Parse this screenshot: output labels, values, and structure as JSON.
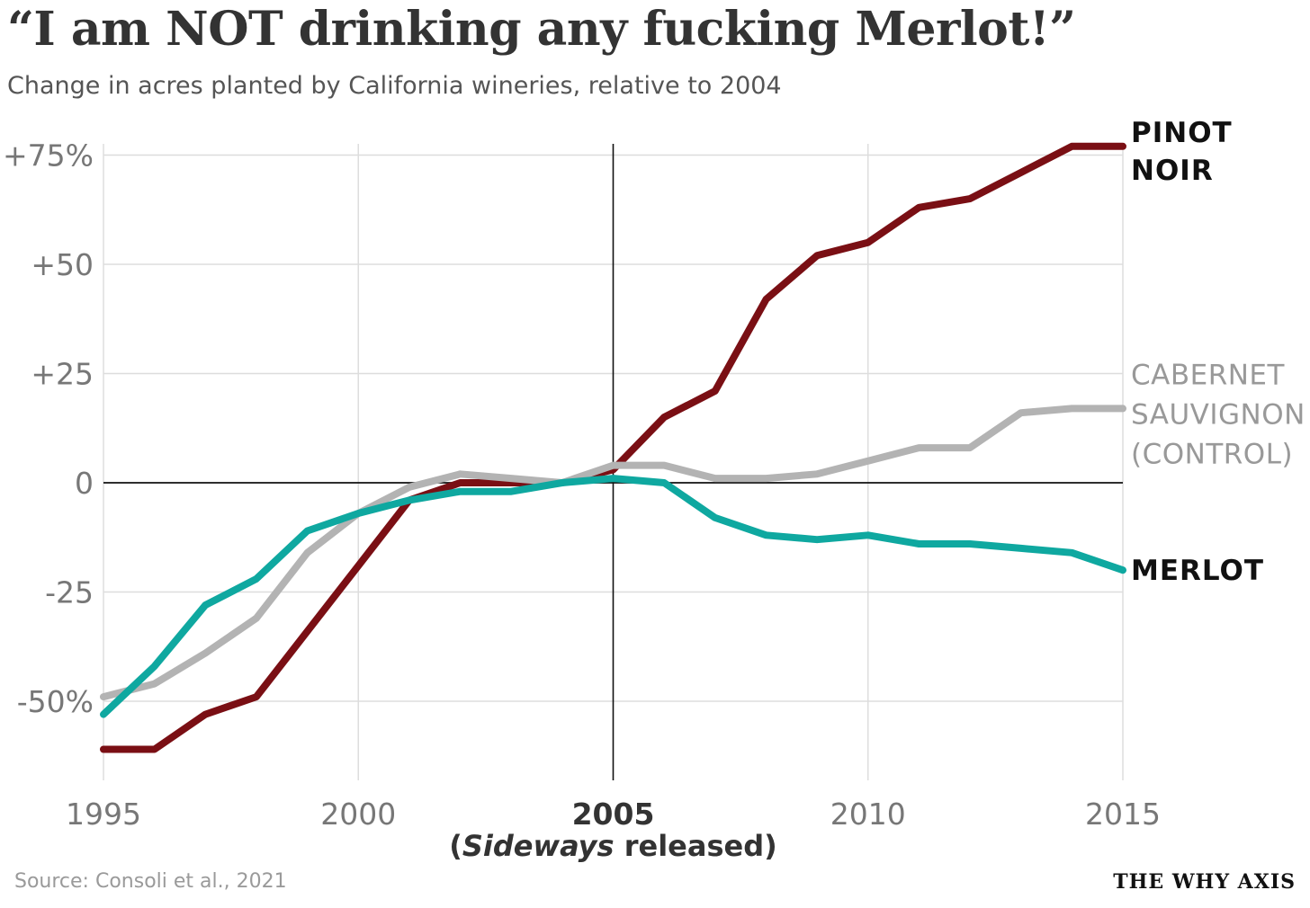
{
  "header": {
    "title": "“I am NOT drinking any fucking Merlot!”",
    "subtitle": "Change in acres planted by California wineries, relative to 2004"
  },
  "footer": {
    "source": "Source: Consoli et al., 2021",
    "brand": "THE WHY AXIS"
  },
  "chart_data": {
    "type": "line",
    "title": "“I am NOT drinking any fucking Merlot!”",
    "subtitle": "Change in acres planted by California wineries, relative to 2004",
    "xlabel": "",
    "ylabel": "",
    "xlim": [
      1995,
      2015
    ],
    "ylim": [
      -65,
      77
    ],
    "x_ticks": [
      1995,
      2000,
      2005,
      2010,
      2015
    ],
    "x_tick_labels": [
      "1995",
      "2000",
      "2005",
      "2010",
      "2015"
    ],
    "y_ticks": [
      75,
      50,
      25,
      0,
      -25,
      -50
    ],
    "y_tick_labels": [
      "+75%",
      "+50",
      "+25",
      "0",
      "-25",
      "-50%"
    ],
    "grid": true,
    "annotation": {
      "x": 2005,
      "label": "2005",
      "sublabel_parts": [
        "(",
        "Sideways",
        " released)"
      ]
    },
    "series": [
      {
        "name_lines": [
          "PINOT",
          "NOIR"
        ],
        "color": "#7a0f14",
        "label_color": "#111111",
        "label_bold": true,
        "x": [
          1995,
          1996,
          1997,
          1998,
          1999,
          2000,
          2001,
          2002,
          2003,
          2004,
          2005,
          2006,
          2007,
          2008,
          2009,
          2010,
          2011,
          2012,
          2013,
          2014,
          2015
        ],
        "values": [
          -61,
          -61,
          -53,
          -49,
          -34,
          -19,
          -4,
          0,
          0,
          0,
          3,
          15,
          21,
          42,
          52,
          55,
          63,
          65,
          71,
          77,
          77
        ]
      },
      {
        "name_lines": [
          "CABERNET",
          "SAUVIGNON",
          "(CONTROL)"
        ],
        "color": "#b3b3b3",
        "label_color": "#999999",
        "label_bold": false,
        "x": [
          1995,
          1996,
          1997,
          1998,
          1999,
          2000,
          2001,
          2002,
          2003,
          2004,
          2005,
          2006,
          2007,
          2008,
          2009,
          2010,
          2011,
          2012,
          2013,
          2014,
          2015
        ],
        "values": [
          -49,
          -46,
          -39,
          -31,
          -16,
          -7,
          -1,
          2,
          1,
          0,
          4,
          4,
          1,
          1,
          2,
          5,
          8,
          8,
          16,
          17,
          17
        ]
      },
      {
        "name_lines": [
          "MERLOT"
        ],
        "color": "#0fa8a0",
        "label_color": "#111111",
        "label_bold": true,
        "x": [
          1995,
          1996,
          1997,
          1998,
          1999,
          2000,
          2001,
          2002,
          2003,
          2004,
          2005,
          2006,
          2007,
          2008,
          2009,
          2010,
          2011,
          2012,
          2013,
          2014,
          2015
        ],
        "values": [
          -53,
          -42,
          -28,
          -22,
          -11,
          -7,
          -4,
          -2,
          -2,
          0,
          1,
          0,
          -8,
          -12,
          -13,
          -12,
          -14,
          -14,
          -15,
          -16,
          -20
        ]
      }
    ]
  }
}
